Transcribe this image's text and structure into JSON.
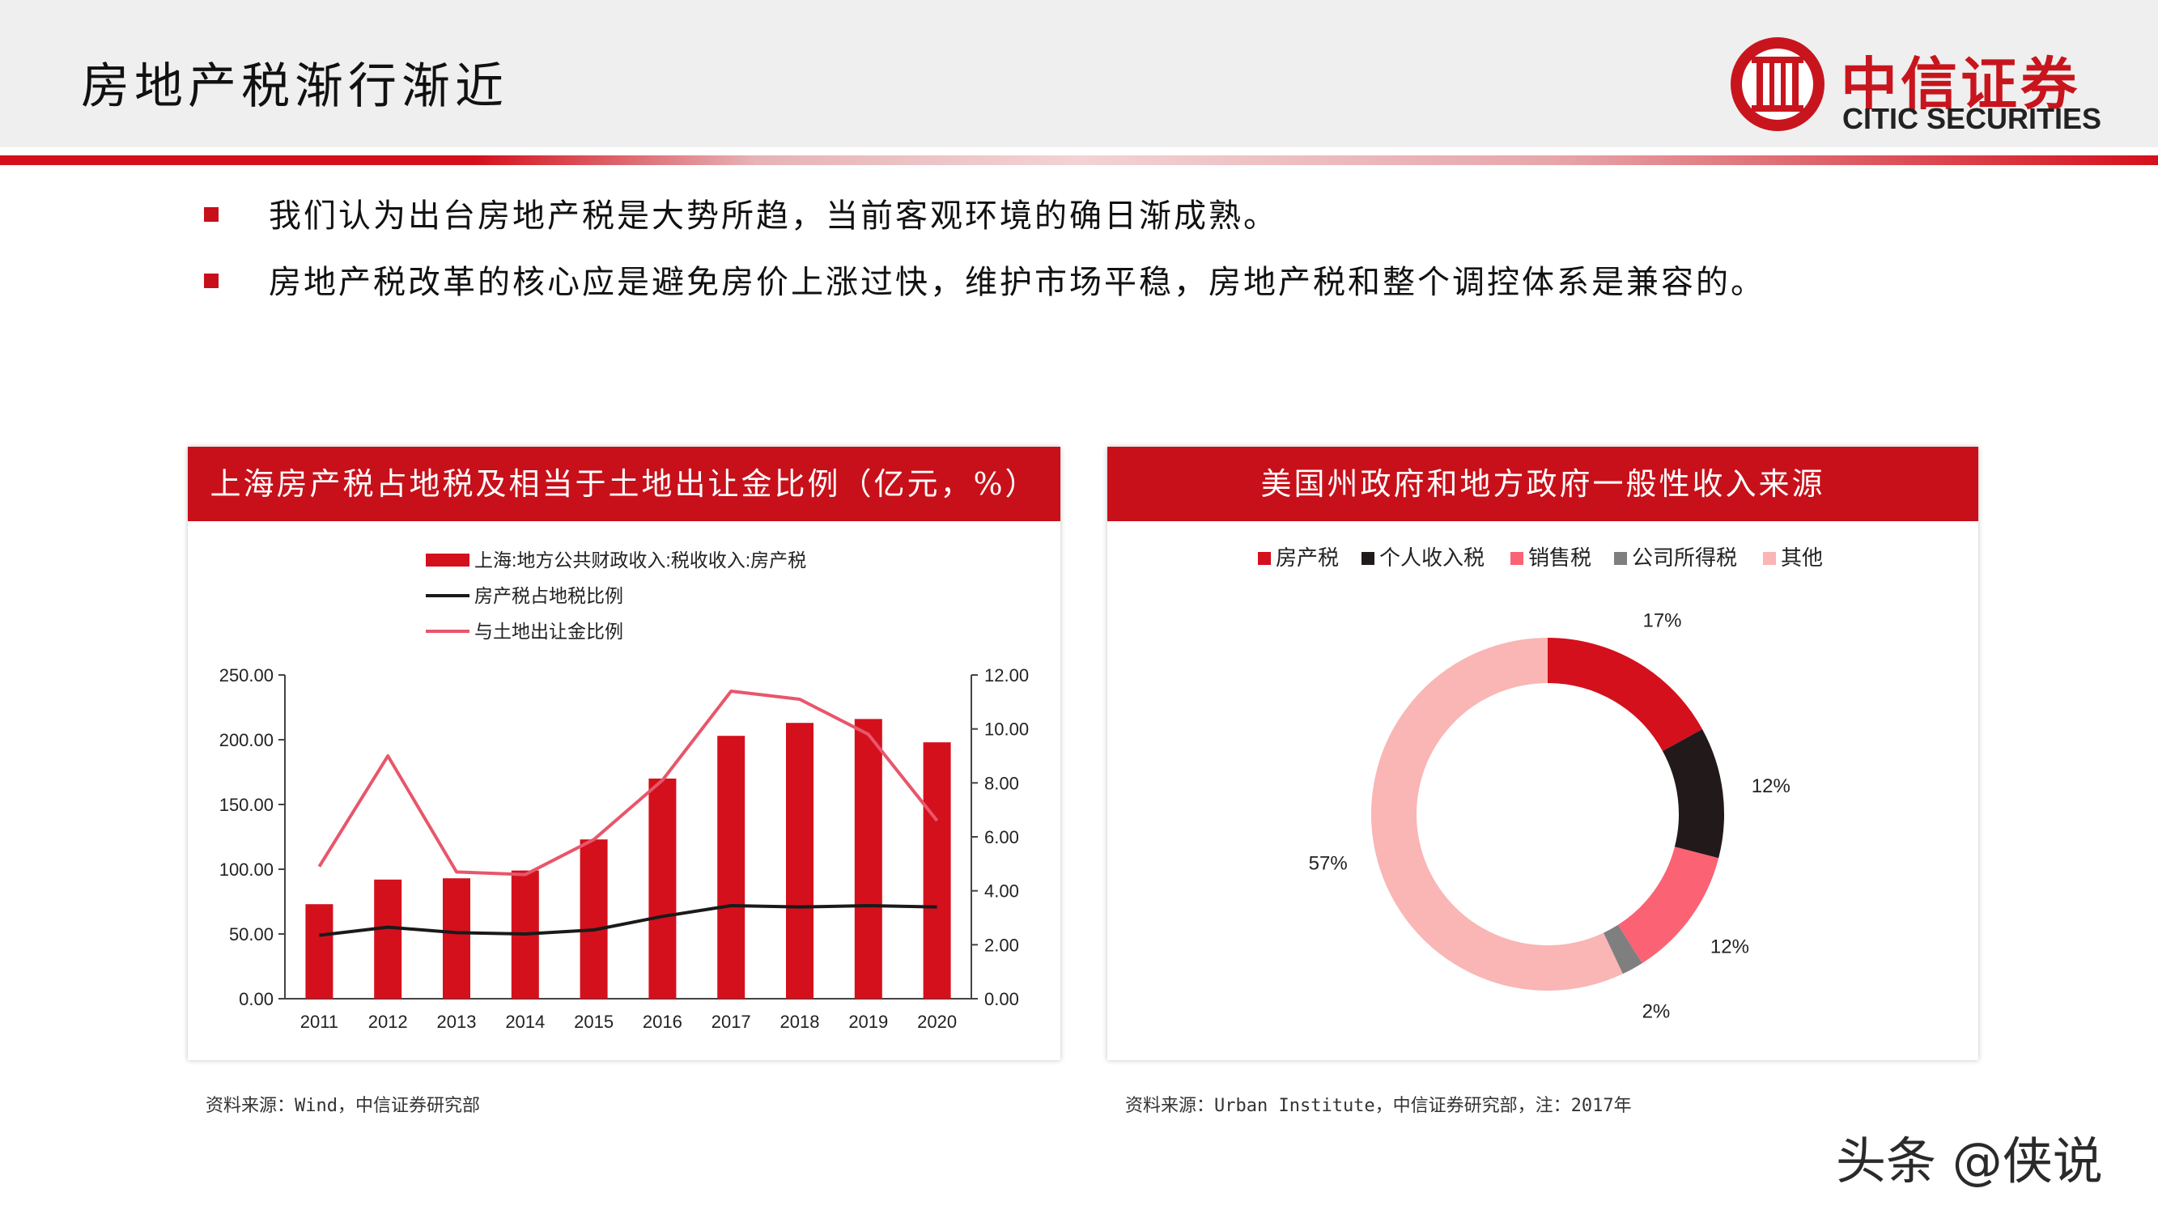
{
  "header": {
    "title": "房地产税渐行渐近",
    "logo_cn": "中信证券",
    "logo_en": "CITIC SECURITIES"
  },
  "bullets": [
    "我们认为出台房地产税是大势所趋，当前客观环境的确日渐成熟。",
    "房地产税改革的核心应是避免房价上涨过快，维护市场平稳，房地产税和整个调控体系是兼容的。"
  ],
  "left_panel": {
    "title": "上海房产税占地税及相当于土地出让金比例（亿元，%）",
    "source": "资料来源：Wind，中信证券研究部"
  },
  "right_panel": {
    "title": "美国州政府和地方政府一般性收入来源",
    "source": "资料来源：Urban Institute，中信证券研究部，注：2017年"
  },
  "watermark": "头条 @侠说",
  "colors": {
    "brand_red": "#c8101a",
    "line_black": "#1a1a1a",
    "line_pink": "#e8566a"
  },
  "chart_data": [
    {
      "type": "bar",
      "categories": [
        "2011",
        "2012",
        "2013",
        "2014",
        "2015",
        "2016",
        "2017",
        "2018",
        "2019",
        "2020"
      ],
      "series": [
        {
          "name": "上海:地方公共财政收入:税收收入:房产税",
          "type": "bar",
          "axis": "left",
          "color": "#d4101c",
          "values": [
            73,
            92,
            93,
            99,
            123,
            170,
            203,
            213,
            216,
            198
          ]
        },
        {
          "name": "房产税占地税比例",
          "type": "line",
          "axis": "right",
          "color": "#1a1a1a",
          "values": [
            2.35,
            2.65,
            2.45,
            2.4,
            2.55,
            3.05,
            3.45,
            3.4,
            3.45,
            3.4
          ]
        },
        {
          "name": "与土地出让金比例",
          "type": "line",
          "axis": "right",
          "color": "#e8566a",
          "values": [
            4.9,
            9.0,
            4.7,
            4.6,
            5.9,
            8.1,
            11.4,
            11.1,
            9.8,
            6.6
          ]
        }
      ],
      "ylim_left": [
        0,
        250
      ],
      "yticks_left": [
        "250.00",
        "200.00",
        "150.00",
        "100.00",
        "50.00",
        "0.00"
      ],
      "ylim_right": [
        0,
        12
      ],
      "yticks_right": [
        "12.00",
        "10.00",
        "8.00",
        "6.00",
        "4.00",
        "2.00",
        "0.00"
      ],
      "legend_position": "top-left",
      "grid": false
    },
    {
      "type": "pie",
      "donut": true,
      "slices": [
        {
          "name": "房产税",
          "value": 17,
          "label": "17%",
          "color": "#d4101c"
        },
        {
          "name": "个人收入税",
          "value": 12,
          "label": "12%",
          "color": "#221a1a"
        },
        {
          "name": "销售税",
          "value": 12,
          "label": "12%",
          "color": "#fb6274"
        },
        {
          "name": "公司所得税",
          "value": 2,
          "label": "2%",
          "color": "#7f7f7f"
        },
        {
          "name": "其他",
          "value": 57,
          "label": "57%",
          "color": "#fab5b5"
        }
      ],
      "legend_position": "top"
    }
  ]
}
